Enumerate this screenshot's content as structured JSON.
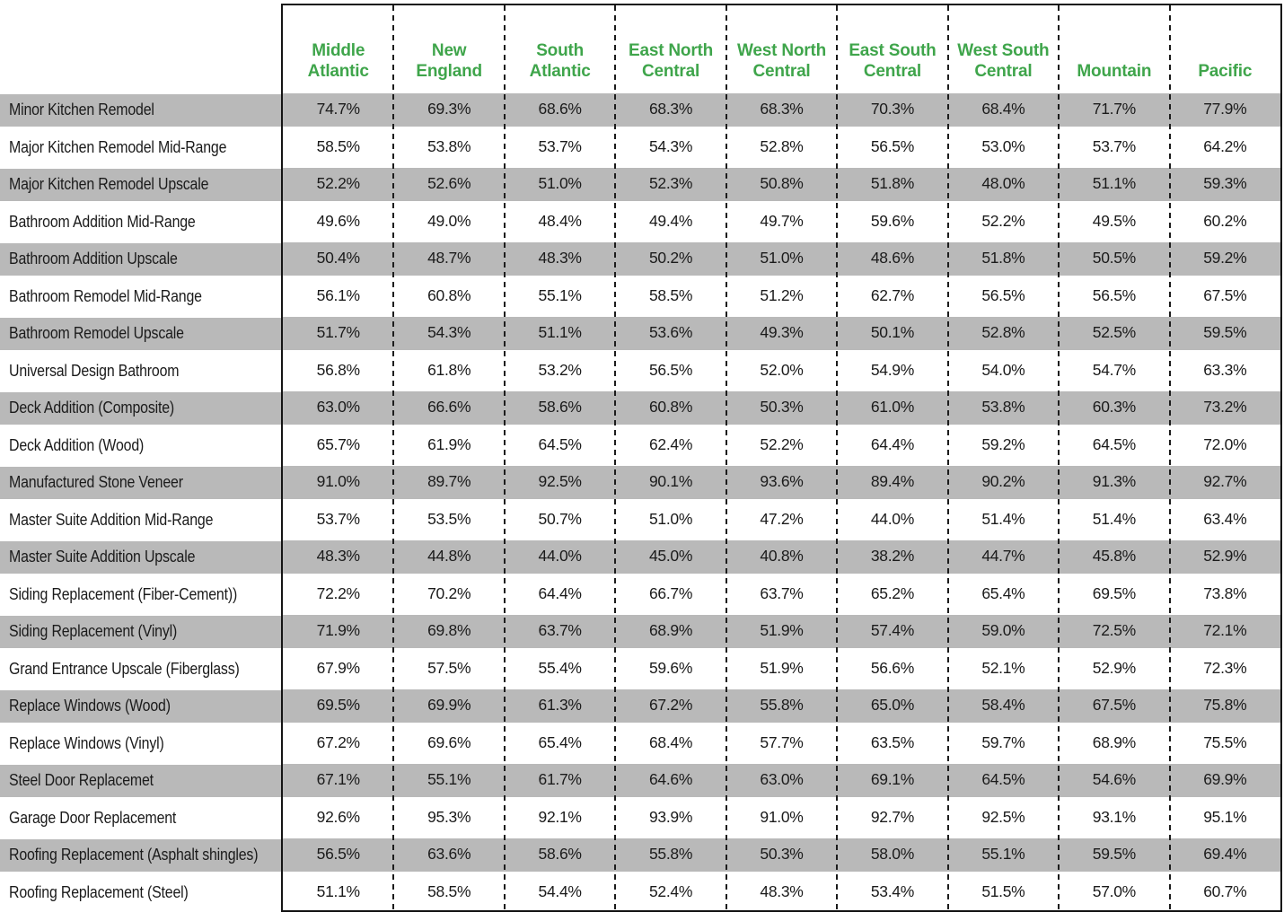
{
  "colors": {
    "header_green": "#3fa54b",
    "stripe_gray": "#b9b9b9",
    "border_black": "#151515",
    "text": "#1b1b1b"
  },
  "chart_data": {
    "type": "table",
    "unit": "%",
    "value_note": "cost recouped percentage per remodeling project by US region",
    "columns": [
      "Middle Atlantic",
      "New England",
      "South Atlantic",
      "East North Central",
      "West North Central",
      "East South Central",
      "West South Central",
      "Mountain",
      "Pacific"
    ],
    "rows": [
      {
        "label": "Minor Kitchen Remodel",
        "values": [
          74.7,
          69.3,
          68.6,
          68.3,
          68.3,
          70.3,
          68.4,
          71.7,
          77.9
        ]
      },
      {
        "label": "Major Kitchen Remodel Mid-Range",
        "values": [
          58.5,
          53.8,
          53.7,
          54.3,
          52.8,
          56.5,
          53.0,
          53.7,
          64.2
        ]
      },
      {
        "label": "Major Kitchen Remodel Upscale",
        "values": [
          52.2,
          52.6,
          51.0,
          52.3,
          50.8,
          51.8,
          48.0,
          51.1,
          59.3
        ]
      },
      {
        "label": "Bathroom Addition Mid-Range",
        "values": [
          49.6,
          49.0,
          48.4,
          49.4,
          49.7,
          59.6,
          52.2,
          49.5,
          60.2
        ]
      },
      {
        "label": "Bathroom Addition Upscale",
        "values": [
          50.4,
          48.7,
          48.3,
          50.2,
          51.0,
          48.6,
          51.8,
          50.5,
          59.2
        ]
      },
      {
        "label": "Bathroom Remodel Mid-Range",
        "values": [
          56.1,
          60.8,
          55.1,
          58.5,
          51.2,
          62.7,
          56.5,
          56.5,
          67.5
        ]
      },
      {
        "label": "Bathroom Remodel Upscale",
        "values": [
          51.7,
          54.3,
          51.1,
          53.6,
          49.3,
          50.1,
          52.8,
          52.5,
          59.5
        ]
      },
      {
        "label": "Universal Design Bathroom",
        "values": [
          56.8,
          61.8,
          53.2,
          56.5,
          52.0,
          54.9,
          54.0,
          54.7,
          63.3
        ]
      },
      {
        "label": "Deck Addition  (Composite)",
        "values": [
          63.0,
          66.6,
          58.6,
          60.8,
          50.3,
          61.0,
          53.8,
          60.3,
          73.2
        ]
      },
      {
        "label": "Deck Addition  (Wood)",
        "values": [
          65.7,
          61.9,
          64.5,
          62.4,
          52.2,
          64.4,
          59.2,
          64.5,
          72.0
        ]
      },
      {
        "label": "Manufactured Stone Veneer",
        "values": [
          91.0,
          89.7,
          92.5,
          90.1,
          93.6,
          89.4,
          90.2,
          91.3,
          92.7
        ]
      },
      {
        "label": "Master Suite Addition Mid-Range",
        "values": [
          53.7,
          53.5,
          50.7,
          51.0,
          47.2,
          44.0,
          51.4,
          51.4,
          63.4
        ]
      },
      {
        "label": "Master Suite Addition Upscale",
        "values": [
          48.3,
          44.8,
          44.0,
          45.0,
          40.8,
          38.2,
          44.7,
          45.8,
          52.9
        ]
      },
      {
        "label": "Siding Replacement  (Fiber-Cement))",
        "values": [
          72.2,
          70.2,
          64.4,
          66.7,
          63.7,
          65.2,
          65.4,
          69.5,
          73.8
        ]
      },
      {
        "label": "Siding Replacement  (Vinyl)",
        "values": [
          71.9,
          69.8,
          63.7,
          68.9,
          51.9,
          57.4,
          59.0,
          72.5,
          72.1
        ]
      },
      {
        "label": "Grand Entrance Upscale (Fiberglass)",
        "values": [
          67.9,
          57.5,
          55.4,
          59.6,
          51.9,
          56.6,
          52.1,
          52.9,
          72.3
        ]
      },
      {
        "label": "Replace Windows  (Wood)",
        "values": [
          69.5,
          69.9,
          61.3,
          67.2,
          55.8,
          65.0,
          58.4,
          67.5,
          75.8
        ]
      },
      {
        "label": "Replace Windows  (Vinyl)",
        "values": [
          67.2,
          69.6,
          65.4,
          68.4,
          57.7,
          63.5,
          59.7,
          68.9,
          75.5
        ]
      },
      {
        "label": "Steel Door Replacemet",
        "values": [
          67.1,
          55.1,
          61.7,
          64.6,
          63.0,
          69.1,
          64.5,
          54.6,
          69.9
        ]
      },
      {
        "label": "Garage Door Replacement",
        "values": [
          92.6,
          95.3,
          92.1,
          93.9,
          91.0,
          92.7,
          92.5,
          93.1,
          95.1
        ]
      },
      {
        "label": "Roofing Replacement (Asphalt shingles)",
        "values": [
          56.5,
          63.6,
          58.6,
          55.8,
          50.3,
          58.0,
          55.1,
          59.5,
          69.4
        ]
      },
      {
        "label": "Roofing  Replacement (Steel)",
        "values": [
          51.1,
          58.5,
          54.4,
          52.4,
          48.3,
          53.4,
          51.5,
          57.0,
          60.7
        ]
      }
    ]
  }
}
